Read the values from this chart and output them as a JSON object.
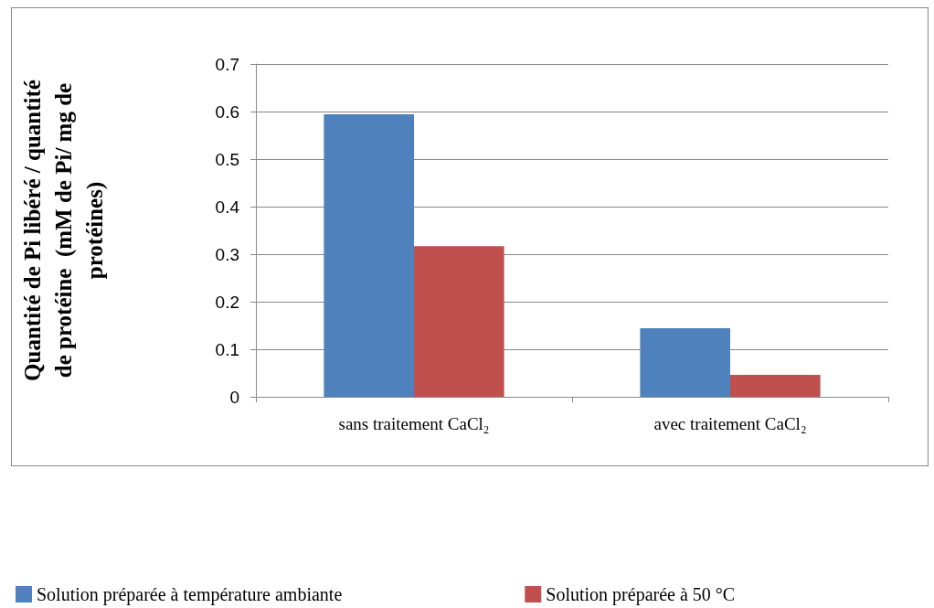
{
  "chart_data": {
    "type": "bar",
    "ylabel": "Quantité de Pi libéré / quantité de protéine  (mM de Pi/ mg de protéines)",
    "categories": [
      "sans traitement CaCl₂",
      "avec traitement CaCl₂"
    ],
    "series": [
      {
        "name": "Solution préparée à température ambiante",
        "color": "#4f81bd",
        "values": [
          0.594,
          0.144
        ]
      },
      {
        "name": "Solution préparée à 50 °C",
        "color": "#c0504d",
        "values": [
          0.317,
          0.046
        ]
      }
    ],
    "ylim": [
      0,
      0.7
    ],
    "yticks": [
      0,
      0.1,
      0.2,
      0.3,
      0.4,
      0.5,
      0.6,
      0.7
    ],
    "grid": "y",
    "legend": "bottom"
  }
}
